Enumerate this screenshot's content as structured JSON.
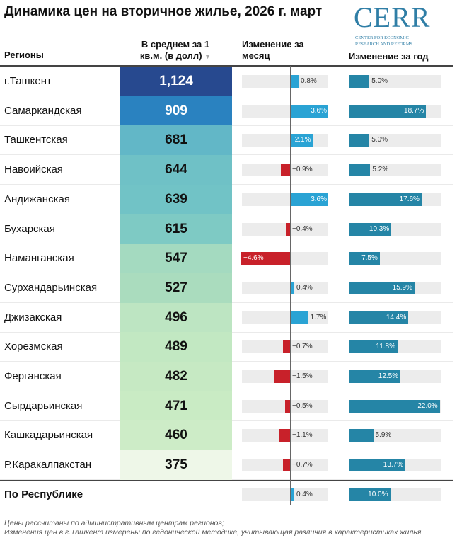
{
  "title": "Динамика цен на вторичное жилье, 2026 г. март",
  "logo": {
    "text": "CERR",
    "subtext_1": "CENTER FOR ECONOMIC",
    "subtext_2": "RESEARCH AND REFORMS"
  },
  "colors": {
    "month_pos": "#2aa3d4",
    "month_neg": "#c8212a",
    "year": "#2585a6",
    "bar_bg": "#ececec"
  },
  "chart_data": {
    "type": "table",
    "columns": [
      "Регионы",
      "В среднем за 1 кв.м. (в долл)",
      "Изменение за месяц",
      "Изменение за год"
    ],
    "sort_indicator": "▼",
    "rows": [
      {
        "region": "г.Ташкент",
        "price": "1,124",
        "month": 0.8,
        "year": 5.0,
        "color": "#27498f"
      },
      {
        "region": "Самаркандская",
        "price": "909",
        "month": 3.6,
        "year": 18.7,
        "color": "#2a82c0"
      },
      {
        "region": "Ташкентская",
        "price": "681",
        "month": 2.1,
        "year": 5.0,
        "color": "#62b7c7"
      },
      {
        "region": "Навоийская",
        "price": "644",
        "month": -0.9,
        "year": 5.2,
        "color": "#6fc1c6"
      },
      {
        "region": "Андижанская",
        "price": "639",
        "month": 3.6,
        "year": 17.6,
        "color": "#71c3c6"
      },
      {
        "region": "Бухарская",
        "price": "615",
        "month": -0.4,
        "year": 10.3,
        "color": "#7ecac4"
      },
      {
        "region": "Наманганская",
        "price": "547",
        "month": -4.6,
        "year": 7.5,
        "color": "#a4dac0"
      },
      {
        "region": "Сурхандарьинская",
        "price": "527",
        "month": 0.4,
        "year": 15.9,
        "color": "#aadcbe"
      },
      {
        "region": "Джизакская",
        "price": "496",
        "month": 1.7,
        "year": 14.4,
        "color": "#bde5c2"
      },
      {
        "region": "Хорезмская",
        "price": "489",
        "month": -0.7,
        "year": 11.8,
        "color": "#c2e8c2"
      },
      {
        "region": "Ферганская",
        "price": "482",
        "month": -1.5,
        "year": 12.5,
        "color": "#c6e9c3"
      },
      {
        "region": "Сырдарьинская",
        "price": "471",
        "month": -0.5,
        "year": 22.0,
        "color": "#c9ebc4"
      },
      {
        "region": "Кашкадарьинская",
        "price": "460",
        "month": -1.1,
        "year": 5.9,
        "color": "#cdecc7"
      },
      {
        "region": "Р.Каракалпакстан",
        "price": "375",
        "month": -0.7,
        "year": 13.7,
        "color": "#eef7e8"
      }
    ],
    "total": {
      "region": "По Республике",
      "month": 0.4,
      "year": 10.0
    }
  },
  "footnotes": [
    "Цены рассчитаны по административным центрам регионов;",
    "Изменения цен в г.Ташкент измерены по гедонической методике, учитывающая различия в характеристиках жилья"
  ]
}
